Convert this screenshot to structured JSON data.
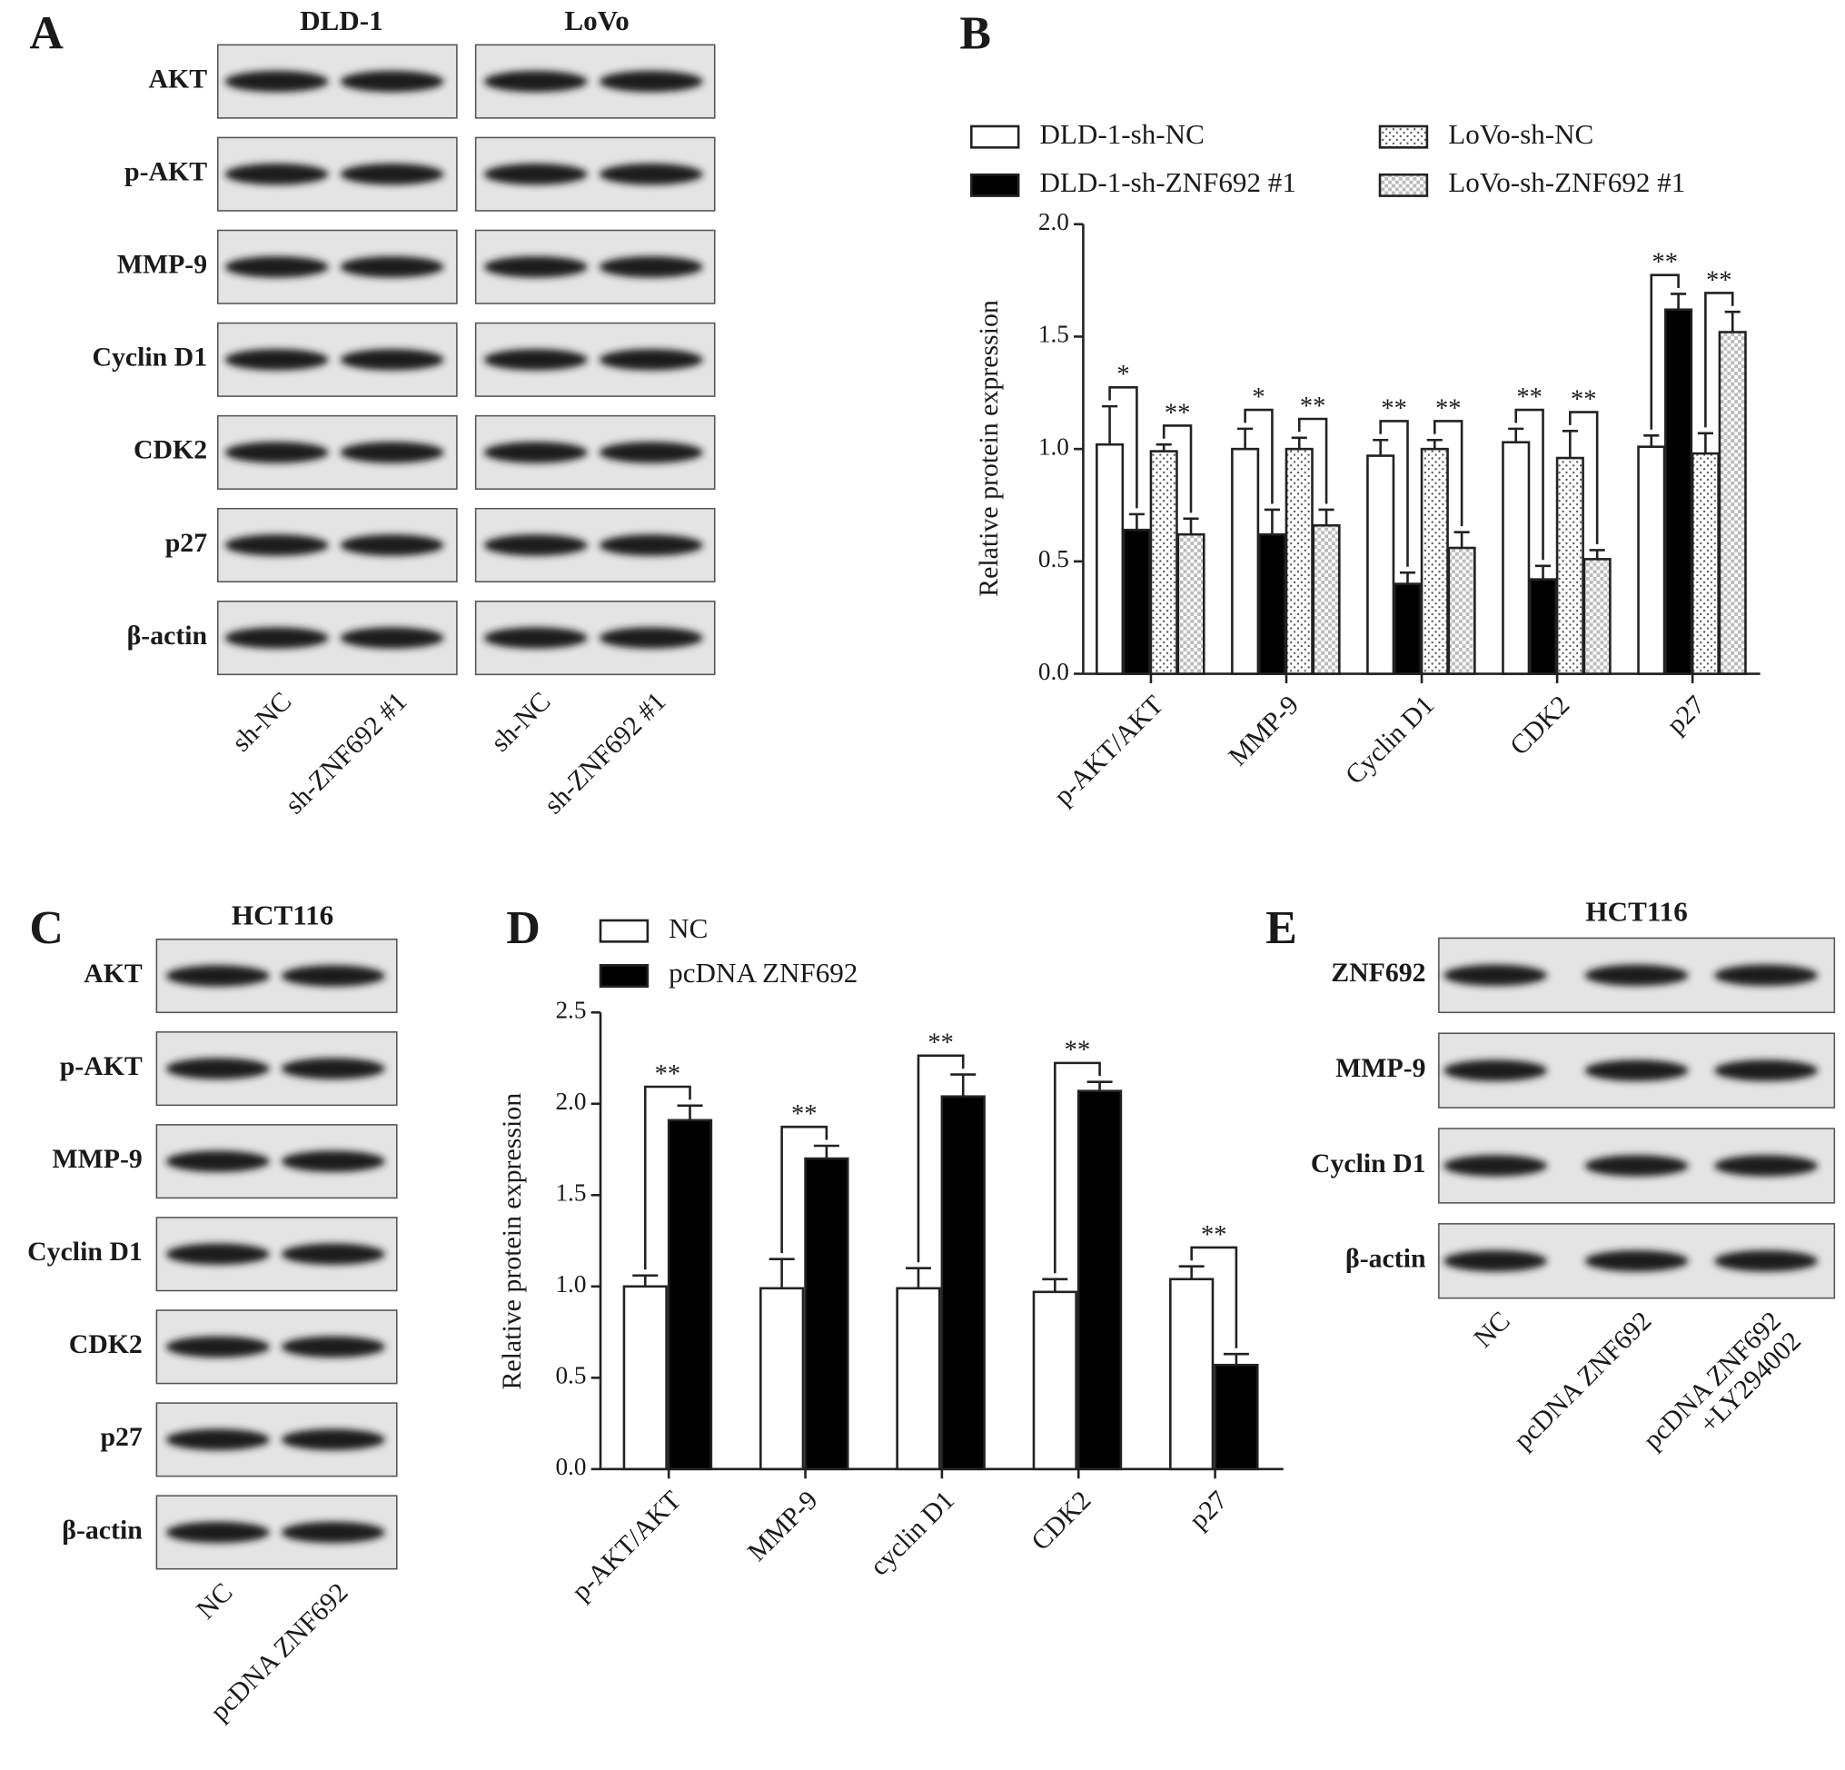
{
  "blots": [
    {
      "label": "A",
      "titles": [
        "DLD-1",
        "LoVo"
      ],
      "rows": [
        "AKT",
        "p-AKT",
        "MMP-9",
        "Cyclin D1",
        "CDK2",
        "p27",
        "β-actin"
      ],
      "lanes": [
        "sh-NC",
        "sh-ZNF692 #1",
        "sh-NC",
        "sh-ZNF692 #1"
      ]
    },
    {
      "label": "C",
      "titles": [
        "HCT116"
      ],
      "rows": [
        "AKT",
        "p-AKT",
        "MMP-9",
        "Cyclin D1",
        "CDK2",
        "p27",
        "β-actin"
      ],
      "lanes": [
        "NC",
        "pcDNA ZNF692"
      ]
    },
    {
      "label": "E",
      "titles": [
        "HCT116"
      ],
      "rows": [
        "ZNF692",
        "MMP-9",
        "Cyclin D1",
        "β-actin"
      ],
      "lanes": [
        "NC",
        "pcDNA ZNF692",
        [
          "pcDNA ZNF692",
          "+LY294002"
        ]
      ]
    }
  ],
  "chart_data": [
    {
      "type": "bar",
      "panel_label": "B",
      "y_label": "Relative protein expression",
      "categories": [
        "p-AKT/AKT",
        "MMP-9",
        "Cyclin D1",
        "CDK2",
        "p27"
      ],
      "series": [
        {
          "name": "DLD-1-sh-NC",
          "color": "#ffffff",
          "pattern": "none",
          "values": [
            1.02,
            1.0,
            0.97,
            1.03,
            1.01
          ],
          "errors": [
            0.17,
            0.09,
            0.07,
            0.06,
            0.05
          ]
        },
        {
          "name": "DLD-1-sh-ZNF692 #1",
          "color": "#000000",
          "pattern": "none",
          "values": [
            0.64,
            0.62,
            0.4,
            0.42,
            1.62
          ],
          "errors": [
            0.07,
            0.11,
            0.05,
            0.06,
            0.07
          ]
        },
        {
          "name": "LoVo-sh-NC",
          "color": "#ffffff",
          "pattern": "dots",
          "values": [
            0.99,
            1.0,
            1.0,
            0.96,
            0.98
          ],
          "errors": [
            0.03,
            0.05,
            0.04,
            0.12,
            0.09
          ]
        },
        {
          "name": "LoVo-sh-ZNF692 #1",
          "color": "#ffffff",
          "pattern": "checker",
          "values": [
            0.62,
            0.66,
            0.56,
            0.51,
            1.52
          ],
          "errors": [
            0.07,
            0.07,
            0.07,
            0.04,
            0.09
          ]
        }
      ],
      "significance": [
        [
          "*",
          "**"
        ],
        [
          "*",
          "**"
        ],
        [
          "**",
          "**"
        ],
        [
          "**",
          "**"
        ],
        [
          "**",
          "**"
        ]
      ],
      "ylim": [
        0,
        2
      ],
      "yticks": [
        {
          "value": 0,
          "label": "0.0"
        },
        0.5,
        {
          "value": 1,
          "label": "1.0"
        },
        1.5,
        {
          "value": 2,
          "label": "2.0"
        }
      ]
    },
    {
      "type": "bar",
      "panel_label": "D",
      "y_label": "Relative protein expression",
      "categories": [
        "p-AKT/AKT",
        "MMP-9",
        "cyclin D1",
        "CDK2",
        "p27"
      ],
      "series": [
        {
          "name": "NC",
          "color": "#ffffff",
          "pattern": "none",
          "values": [
            1.0,
            0.99,
            0.99,
            0.97,
            1.04
          ],
          "errors": [
            0.06,
            0.16,
            0.11,
            0.07,
            0.07
          ]
        },
        {
          "name": "pcDNA ZNF692",
          "color": "#000000",
          "pattern": "none",
          "values": [
            1.91,
            1.7,
            2.04,
            2.07,
            0.57
          ],
          "errors": [
            0.08,
            0.07,
            0.12,
            0.05,
            0.06
          ]
        }
      ],
      "significance": [
        [
          "**"
        ],
        [
          "**"
        ],
        [
          "**"
        ],
        [
          "**"
        ],
        [
          "**"
        ]
      ],
      "ylim": [
        0,
        2.5
      ],
      "yticks": [
        {
          "value": 0,
          "label": "0.0"
        },
        0.5,
        {
          "value": 1,
          "label": "1.0"
        },
        1.5,
        {
          "value": 2,
          "label": "2.0"
        },
        2.5
      ]
    }
  ]
}
